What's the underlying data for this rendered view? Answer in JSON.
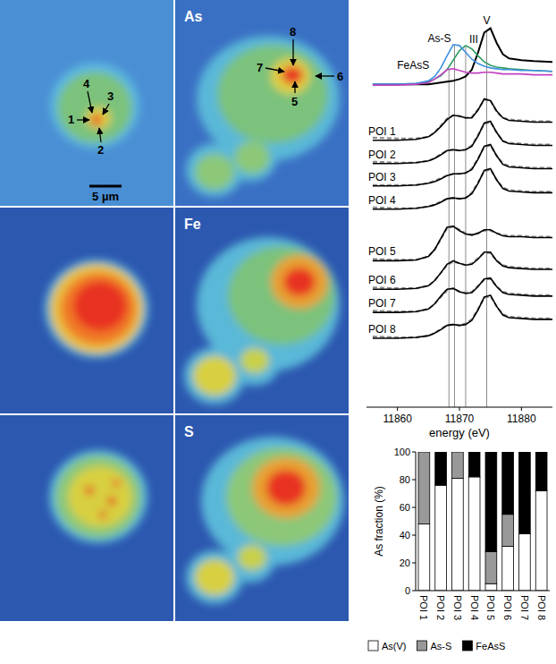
{
  "maps": {
    "element_labels": [
      "As",
      "Fe",
      "S"
    ],
    "points": [
      "1",
      "2",
      "3",
      "4",
      "5",
      "6",
      "7",
      "8"
    ],
    "scale_bar": "5 µm"
  },
  "chart_data": [
    {
      "type": "line",
      "x_label": "energy (eV)",
      "xlim": [
        11855,
        11885
      ],
      "xticks": [
        11860,
        11870,
        11880
      ],
      "ylim": [
        0,
        45
      ],
      "tick_labels": "x",
      "grid": false,
      "x": [
        11856,
        11860,
        11863,
        11865,
        11866,
        11867,
        11868,
        11869,
        11870,
        11871,
        11872,
        11873,
        11874,
        11875,
        11876,
        11877,
        11878,
        11880,
        11882,
        11885
      ],
      "series": [
        {
          "name": "V",
          "color": "#000000",
          "edge_energy": 11874.4,
          "values": [
            37.5,
            37.5,
            37.5,
            37.5,
            37.6,
            37.7,
            37.8,
            37.9,
            38.1,
            38.4,
            39.2,
            41.2,
            43.5,
            44.0,
            42.3,
            41.0,
            40.5,
            40.3,
            40.2,
            40.1
          ]
        },
        {
          "name": "III",
          "color": "#2e9d62",
          "edge_energy": 11871,
          "values": [
            37.5,
            37.5,
            37.6,
            37.8,
            38.1,
            38.5,
            39.2,
            40.3,
            41.4,
            42.0,
            41.6,
            40.8,
            40.1,
            39.7,
            39.5,
            39.4,
            39.3,
            39.2,
            39.1,
            39.0
          ]
        },
        {
          "name": "As-S",
          "color": "#3c8fe0",
          "edge_energy": 11869.2,
          "values": [
            37.5,
            37.5,
            37.6,
            37.9,
            38.4,
            39.4,
            40.8,
            42.1,
            42.0,
            41.2,
            40.4,
            39.9,
            39.6,
            39.4,
            39.3,
            39.2,
            39.2,
            39.1,
            39.1,
            39.0
          ]
        },
        {
          "name": "FeAsS",
          "color": "#c040c0",
          "edge_energy": 11868.3,
          "values": [
            37.4,
            37.4,
            37.5,
            37.7,
            38.1,
            38.6,
            39.2,
            39.3,
            39.1,
            38.9,
            38.8,
            38.8,
            38.9,
            38.9,
            38.8,
            38.7,
            38.7,
            38.7,
            38.6,
            38.6
          ]
        },
        {
          "name": "POI 1",
          "color": "#000000",
          "values": [
            31.0,
            31.0,
            31.1,
            31.4,
            31.9,
            32.6,
            33.4,
            33.9,
            33.8,
            33.6,
            33.6,
            34.5,
            35.8,
            35.6,
            34.4,
            33.6,
            33.3,
            33.2,
            33.1,
            33.1
          ],
          "fit": [
            31.3,
            31.2,
            31.2,
            31.4,
            31.9,
            32.7,
            33.5,
            33.9,
            33.8,
            33.6,
            33.7,
            34.6,
            35.7,
            35.6,
            34.3,
            33.6,
            33.4,
            33.3,
            33.2,
            33.2
          ]
        },
        {
          "name": "POI 2",
          "color": "#000000",
          "values": [
            28.3,
            28.3,
            28.4,
            28.6,
            28.9,
            29.3,
            29.8,
            29.9,
            29.8,
            29.9,
            30.3,
            31.5,
            33.0,
            33.2,
            31.9,
            30.9,
            30.6,
            30.5,
            30.4,
            30.4
          ],
          "fit": [
            28.5,
            28.4,
            28.4,
            28.6,
            28.9,
            29.4,
            29.8,
            29.9,
            29.8,
            29.9,
            30.4,
            31.6,
            32.9,
            33.1,
            31.9,
            30.9,
            30.7,
            30.6,
            30.5,
            30.5
          ]
        },
        {
          "name": "POI 3",
          "color": "#000000",
          "values": [
            25.7,
            25.7,
            25.8,
            26.0,
            26.2,
            26.5,
            26.9,
            27.1,
            27.1,
            27.2,
            27.6,
            28.8,
            30.3,
            30.5,
            29.2,
            28.2,
            27.9,
            27.8,
            27.7,
            27.7
          ],
          "fit": [
            25.8,
            25.8,
            25.8,
            26.0,
            26.3,
            26.6,
            26.9,
            27.1,
            27.1,
            27.2,
            27.7,
            28.9,
            30.2,
            30.4,
            29.2,
            28.3,
            28.0,
            27.9,
            27.8,
            27.8
          ]
        },
        {
          "name": "POI 4",
          "color": "#000000",
          "values": [
            23.0,
            23.0,
            23.1,
            23.3,
            23.5,
            23.8,
            24.2,
            24.3,
            24.2,
            24.3,
            24.8,
            26.0,
            27.5,
            27.7,
            26.4,
            25.4,
            25.1,
            25.0,
            24.9,
            24.9
          ],
          "fit": [
            23.2,
            23.1,
            23.1,
            23.3,
            23.5,
            23.9,
            24.2,
            24.3,
            24.2,
            24.3,
            24.9,
            26.1,
            27.4,
            27.6,
            26.4,
            25.5,
            25.2,
            25.1,
            25.0,
            25.0
          ]
        },
        {
          "name": "POI 5",
          "color": "#000000",
          "values": [
            17.0,
            17.0,
            17.1,
            17.5,
            18.3,
            19.6,
            20.9,
            21.0,
            20.5,
            20.1,
            20.0,
            20.2,
            20.6,
            20.6,
            20.2,
            19.9,
            19.8,
            19.8,
            19.7,
            19.7
          ],
          "fit": [
            17.2,
            17.1,
            17.1,
            17.5,
            18.3,
            19.5,
            20.8,
            21.0,
            20.6,
            20.2,
            20.0,
            20.2,
            20.5,
            20.5,
            20.2,
            20.0,
            19.9,
            19.9,
            19.8,
            19.8
          ]
        },
        {
          "name": "POI 6",
          "color": "#000000",
          "values": [
            13.7,
            13.7,
            13.8,
            14.1,
            14.7,
            15.6,
            16.6,
            17.0,
            16.7,
            16.5,
            16.6,
            17.2,
            18.0,
            18.0,
            17.0,
            16.4,
            16.2,
            16.1,
            16.0,
            16.0
          ],
          "fit": [
            13.9,
            13.8,
            13.8,
            14.1,
            14.7,
            15.6,
            16.5,
            16.9,
            16.7,
            16.5,
            16.7,
            17.3,
            17.9,
            17.9,
            17.0,
            16.5,
            16.3,
            16.2,
            16.1,
            16.1
          ]
        },
        {
          "name": "POI 7",
          "color": "#000000",
          "values": [
            11.0,
            11.0,
            11.1,
            11.4,
            12.0,
            12.9,
            13.7,
            13.8,
            13.4,
            13.2,
            13.3,
            14.0,
            14.9,
            15.0,
            14.0,
            13.3,
            13.1,
            13.0,
            12.9,
            12.9
          ],
          "fit": [
            11.2,
            11.1,
            11.1,
            11.4,
            12.0,
            12.8,
            13.6,
            13.8,
            13.4,
            13.3,
            13.4,
            14.1,
            14.8,
            14.9,
            14.0,
            13.4,
            13.2,
            13.1,
            13.0,
            13.0
          ]
        },
        {
          "name": "POI 8",
          "color": "#000000",
          "values": [
            8.0,
            8.0,
            8.1,
            8.3,
            8.6,
            9.0,
            9.5,
            9.6,
            9.5,
            9.6,
            10.1,
            11.3,
            12.8,
            13.0,
            11.7,
            10.7,
            10.4,
            10.3,
            10.2,
            10.2
          ],
          "fit": [
            8.2,
            8.1,
            8.1,
            8.3,
            8.6,
            9.1,
            9.5,
            9.6,
            9.5,
            9.7,
            10.2,
            11.4,
            12.7,
            12.9,
            11.7,
            10.8,
            10.5,
            10.4,
            10.3,
            10.3
          ]
        }
      ]
    },
    {
      "type": "bar",
      "stacked": true,
      "y_label": "As fraction (%)",
      "legend": "bottom",
      "grid": false,
      "categories": [
        "POI 1",
        "POI 2",
        "POI 3",
        "POI 4",
        "POI 5",
        "POI 6",
        "POI 7",
        "POI 8"
      ],
      "ylim": [
        0,
        100
      ],
      "yticks": [
        0,
        20,
        40,
        60,
        80,
        100
      ],
      "series": [
        {
          "name": "As(V)",
          "color": "#ffffff",
          "values": [
            48,
            76,
            81,
            82,
            5,
            32,
            41,
            72
          ]
        },
        {
          "name": "As-S",
          "color": "#999999",
          "values": [
            52,
            0,
            19,
            0,
            23,
            23,
            0,
            0
          ]
        },
        {
          "name": "FeAsS",
          "color": "#000000",
          "values": [
            0,
            24,
            0,
            18,
            72,
            45,
            59,
            28
          ]
        }
      ]
    }
  ]
}
